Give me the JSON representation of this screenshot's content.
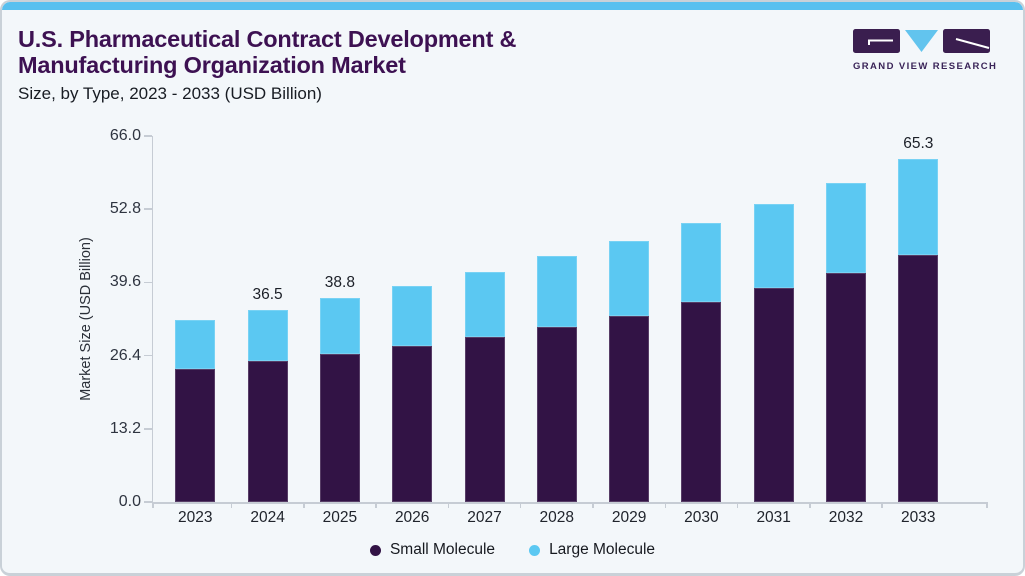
{
  "header": {
    "title_line1": "U.S. Pharmaceutical Contract Development &",
    "title_line2": "Manufacturing Organization Market",
    "subtitle": "Size, by Type, 2023 - 2033 (USD Billion)",
    "logo_text": "GRAND VIEW RESEARCH"
  },
  "colors": {
    "title": "#3D1152",
    "topbar": "#58C0EF",
    "card_bg": "#F3F7FA",
    "axis": "#C6CCD4",
    "small_molecule": "#321345",
    "large_molecule": "#5BC8F2",
    "logo_purple": "#3A1E4F",
    "logo_blue": "#62C4EE"
  },
  "chart_data": {
    "type": "bar",
    "stacked": true,
    "title": "U.S. Pharmaceutical Contract Development & Manufacturing Organization Market Size, by Type, 2023 - 2033 (USD Billion)",
    "categories": [
      "2023",
      "2024",
      "2025",
      "2026",
      "2027",
      "2028",
      "2029",
      "2030",
      "2031",
      "2032",
      "2033"
    ],
    "series": [
      {
        "name": "Small Molecule",
        "color": "#321345",
        "values": [
          25.4,
          26.8,
          28.2,
          29.8,
          31.5,
          33.4,
          35.5,
          38.1,
          40.8,
          43.7,
          47.1
        ]
      },
      {
        "name": "Large Molecule",
        "color": "#5BC8F2",
        "values": [
          9.2,
          9.7,
          10.6,
          11.4,
          12.4,
          13.4,
          14.3,
          15.1,
          16.0,
          17.0,
          18.2
        ]
      }
    ],
    "totals": [
      34.6,
      36.5,
      38.8,
      41.2,
      43.9,
      46.8,
      49.8,
      53.2,
      56.8,
      60.7,
      65.3
    ],
    "data_labels": [
      "",
      "36.5",
      "38.8",
      "",
      "",
      "",
      "",
      "",
      "",
      "",
      "65.3"
    ],
    "xlabel": "",
    "ylabel": "Market Size (USD Billion)",
    "y_ticks": [
      "66.0",
      "52.8",
      "39.6",
      "26.4",
      "13.2",
      "0.0"
    ],
    "ylim": [
      0,
      66
    ],
    "grid": false,
    "legend_position": "bottom"
  }
}
